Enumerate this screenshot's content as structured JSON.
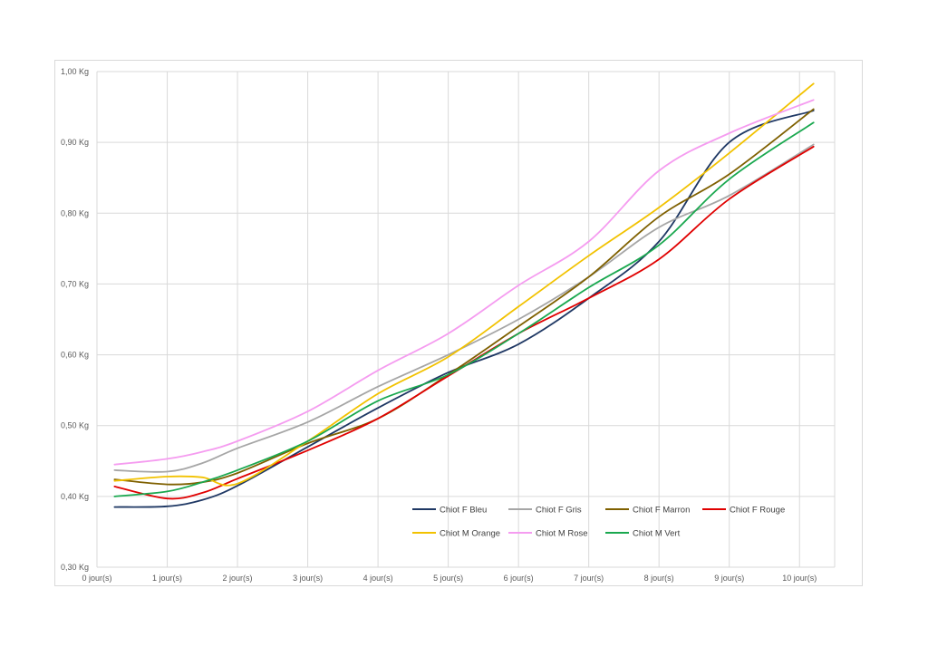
{
  "chart_data": {
    "type": "line",
    "title": "",
    "xlabel": "",
    "ylabel": "",
    "x": [
      0.25,
      1,
      1.5,
      2,
      3,
      4,
      5,
      6,
      7,
      8,
      9,
      10.2
    ],
    "x_tick_labels": [
      "0 jour(s)",
      "1 jour(s)",
      "2 jour(s)",
      "3 jour(s)",
      "4 jour(s)",
      "5 jour(s)",
      "6 jour(s)",
      "7 jour(s)",
      "8 jour(s)",
      "9 jour(s)",
      "10 jour(s)"
    ],
    "xlim": [
      0,
      10.5
    ],
    "y_tick_labels": [
      "0,30 Kg",
      "0,40 Kg",
      "0,50 Kg",
      "0,60 Kg",
      "0,70 Kg",
      "0,80 Kg",
      "0,90 Kg",
      "1,00 Kg"
    ],
    "ylim": [
      0.3,
      1.0
    ],
    "grid": true,
    "legend_position": "bottom-right",
    "series": [
      {
        "name": "Chiot F Bleu",
        "color": "#1f3864",
        "values": [
          0.385,
          0.386,
          0.395,
          0.415,
          0.47,
          0.525,
          0.575,
          0.615,
          0.68,
          0.76,
          0.9,
          0.945
        ]
      },
      {
        "name": "Chiot F Gris",
        "color": "#a6a6a6",
        "values": [
          0.437,
          0.435,
          0.447,
          0.468,
          0.505,
          0.555,
          0.6,
          0.65,
          0.71,
          0.78,
          0.825,
          0.897
        ]
      },
      {
        "name": "Chiot F Marron",
        "color": "#7f6000",
        "values": [
          0.424,
          0.417,
          0.42,
          0.433,
          0.475,
          0.51,
          0.572,
          0.64,
          0.71,
          0.795,
          0.855,
          0.947
        ]
      },
      {
        "name": "Chiot F Rouge",
        "color": "#e00000",
        "values": [
          0.414,
          0.397,
          0.405,
          0.425,
          0.465,
          0.51,
          0.57,
          0.63,
          0.68,
          0.735,
          0.82,
          0.894
        ]
      },
      {
        "name": "Chiot M Orange",
        "color": "#f2c200",
        "values": [
          0.422,
          0.428,
          0.427,
          0.418,
          0.478,
          0.545,
          0.597,
          0.668,
          0.74,
          0.808,
          0.885,
          0.983
        ]
      },
      {
        "name": "Chiot M Rose",
        "color": "#f59cf0",
        "values": [
          0.445,
          0.453,
          0.463,
          0.478,
          0.52,
          0.578,
          0.63,
          0.698,
          0.76,
          0.86,
          0.913,
          0.96
        ]
      },
      {
        "name": "Chiot M Vert",
        "color": "#1aa84f",
        "values": [
          0.4,
          0.407,
          0.42,
          0.437,
          0.478,
          0.535,
          0.572,
          0.63,
          0.695,
          0.755,
          0.848,
          0.928
        ]
      }
    ]
  }
}
